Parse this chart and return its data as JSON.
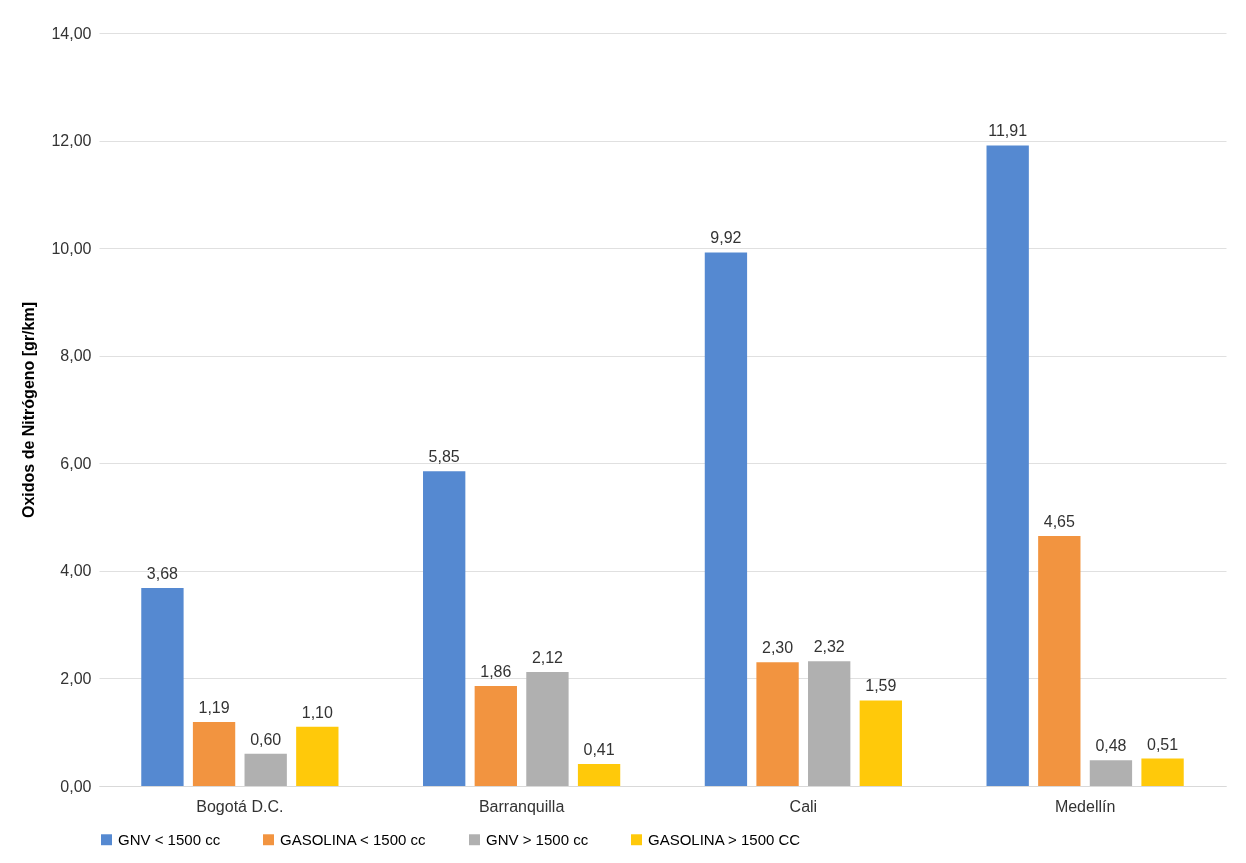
{
  "chart_data": {
    "type": "bar",
    "ylabel": "Oxidos de Nitrógeno [gr/km]",
    "categories": [
      "Bogotá D.C.",
      "Barranquilla",
      "Cali",
      "Medellín"
    ],
    "series": [
      {
        "name": "GNV < 1500 cc",
        "color": "#5589d1",
        "values": [
          3.68,
          5.85,
          9.92,
          11.91
        ],
        "value_labels": [
          "3,68",
          "5,85",
          "9,92",
          "11,91"
        ]
      },
      {
        "name": "GASOLINA < 1500 cc",
        "color": "#f29440",
        "values": [
          1.19,
          1.86,
          2.3,
          4.65
        ],
        "value_labels": [
          "1,19",
          "1,86",
          "2,30",
          "4,65"
        ]
      },
      {
        "name": "GNV > 1500 cc",
        "color": "#b0b0b0",
        "values": [
          0.6,
          2.12,
          2.32,
          0.48
        ],
        "value_labels": [
          "0,60",
          "2,12",
          "2,32",
          "0,48"
        ]
      },
      {
        "name": "GASOLINA > 1500 CC",
        "color": "#ffc90a",
        "values": [
          1.1,
          0.41,
          1.59,
          0.51
        ],
        "value_labels": [
          "1,10",
          "0,41",
          "1,59",
          "0,51"
        ]
      }
    ],
    "ylim": [
      0,
      14
    ],
    "yticks": [
      {
        "value": 0,
        "label": "0,00"
      },
      {
        "value": 2,
        "label": "2,00"
      },
      {
        "value": 4,
        "label": "4,00"
      },
      {
        "value": 6,
        "label": "6,00"
      },
      {
        "value": 8,
        "label": "8,00"
      },
      {
        "value": 10,
        "label": "10,00"
      },
      {
        "value": 12,
        "label": "12,00"
      },
      {
        "value": 14,
        "label": "14,00"
      }
    ],
    "grid": "y",
    "legend": "bottom"
  }
}
